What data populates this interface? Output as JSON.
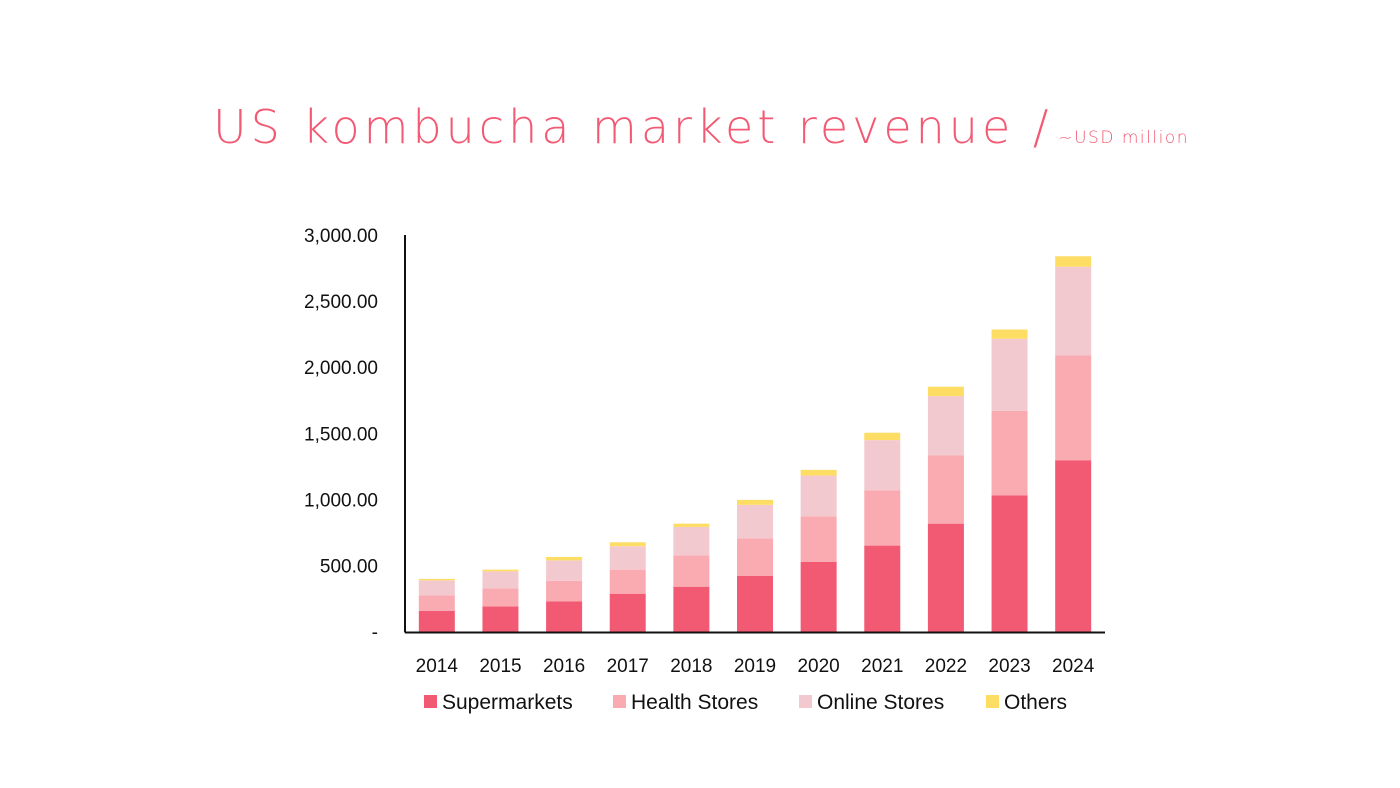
{
  "chart_data": {
    "type": "bar",
    "stacked": true,
    "title": "US kombucha market revenue /",
    "subtitle": "~USD million",
    "xlabel": "",
    "ylabel": "",
    "ylim": [
      0,
      3000
    ],
    "yticks": [
      0,
      500,
      1000,
      1500,
      2000,
      2500,
      3000
    ],
    "ytick_labels": [
      "-",
      "500.00",
      "1,000.00",
      "1,500.00",
      "2,000.00",
      "2,500.00",
      "3,000.00"
    ],
    "grid": false,
    "legend_position": "bottom",
    "categories": [
      "2014",
      "2015",
      "2016",
      "2017",
      "2018",
      "2019",
      "2020",
      "2021",
      "2022",
      "2023",
      "2024"
    ],
    "series": [
      {
        "name": "Supermarkets",
        "color": "#f25a73",
        "values": [
          157,
          190,
          227,
          286,
          339,
          422,
          526,
          650,
          816,
          1029,
          1296
        ]
      },
      {
        "name": "Health Stores",
        "color": "#faabb2",
        "values": [
          116,
          136,
          157,
          182,
          237,
          283,
          346,
          419,
          518,
          640,
          794
        ]
      },
      {
        "name": "Online Stores",
        "color": "#f2c9cf",
        "values": [
          114,
          129,
          154,
          177,
          215,
          253,
          308,
          379,
          447,
          546,
          670
        ]
      },
      {
        "name": "Others",
        "color": "#fedd64",
        "values": [
          11,
          13,
          26,
          30,
          25,
          38,
          43,
          56,
          71,
          70,
          79
        ]
      }
    ]
  }
}
